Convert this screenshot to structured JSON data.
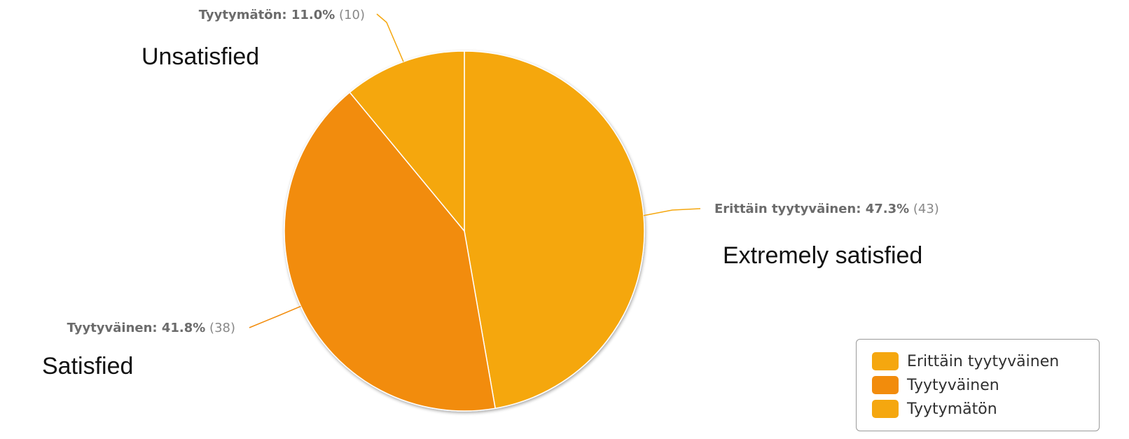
{
  "chart_data": {
    "type": "pie",
    "slices": [
      {
        "name": "Erittäin tyytyväinen",
        "percent_label": "47.3%",
        "value": 43,
        "percent": 47.3,
        "color": "#F5A70F"
      },
      {
        "name": "Tyytyväinen",
        "percent_label": "41.8%",
        "value": 38,
        "percent": 41.8,
        "color": "#F28C0C"
      },
      {
        "name": "Tyytymätön",
        "percent_label": "11.0%",
        "value": 10,
        "percent": 11.0,
        "color": "#F5A70F"
      }
    ],
    "legend": {
      "position": "bottom-right",
      "items": [
        "Erittäin tyytyväinen",
        "Tyytyväinen",
        "Tyytymätön"
      ]
    },
    "annotations": [
      {
        "text": "Extremely satisfied"
      },
      {
        "text": "Satisfied"
      },
      {
        "text": "Unsatisfied"
      }
    ]
  }
}
